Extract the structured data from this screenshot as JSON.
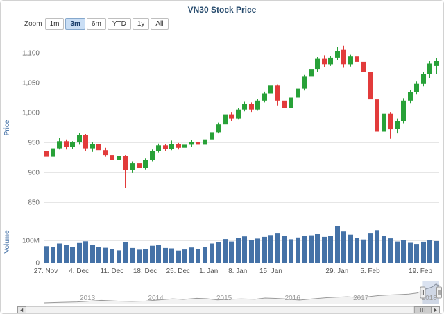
{
  "title": "VN30 Stock Price",
  "range_selector": {
    "zoom_label": "Zoom",
    "buttons": [
      {
        "label": "1m",
        "selected": false
      },
      {
        "label": "3m",
        "selected": true
      },
      {
        "label": "6m",
        "selected": false
      },
      {
        "label": "YTD",
        "selected": false
      },
      {
        "label": "1y",
        "selected": false
      },
      {
        "label": "All",
        "selected": false
      }
    ]
  },
  "colors": {
    "title_text": "#274b6d",
    "up": "#28a138",
    "down": "#e23b3b",
    "volume": "#4572a7",
    "grid": "#e6e6e6",
    "axis_line": "#ccd6eb",
    "tick_label": "#666666",
    "axis_title": "#4572a7",
    "nav_line": "#9a9a9a",
    "nav_fill": "rgba(170,170,170,0.15)",
    "nav_selection": "rgba(51,92,173,0.18)",
    "nav_outline": "#cfcfd4",
    "handle_fill": "#f1f1f1",
    "handle_stroke": "#999999",
    "scrollbar_track": "#f2f2f2",
    "scrollbar_track_border": "#cccccc",
    "scrollbar_thumb": "#cdcdcd",
    "scrollbar_thumb_border": "#999999",
    "scrollbar_button": "#e6e6e6",
    "scrollbar_arrow": "#555555",
    "button_selected_bg": "#c9def5",
    "button_selected_border": "#86a8cc",
    "button_selected_text": "#1a3e6b"
  },
  "chart_data": {
    "type": "candlestick",
    "title": "VN30 Stock Price",
    "legend": "off",
    "grid": "on",
    "price_axis": {
      "title": "Price",
      "ticks": [
        {
          "value": 850,
          "label": "850"
        },
        {
          "value": 900,
          "label": "900"
        },
        {
          "value": 950,
          "label": "950"
        },
        {
          "value": 1000,
          "label": "1,000"
        },
        {
          "value": 1050,
          "label": "1,050"
        },
        {
          "value": 1100,
          "label": "1,100"
        }
      ],
      "range": [
        840,
        1120
      ]
    },
    "volume_axis": {
      "title": "Volume",
      "ticks": [
        {
          "value": 0,
          "label": "0"
        },
        {
          "value": 100,
          "label": "100M"
        }
      ],
      "unit": "millions of shares"
    },
    "x_ticks": [
      {
        "label": "27. Nov",
        "index": 0
      },
      {
        "label": "4. Dec",
        "index": 5
      },
      {
        "label": "11. Dec",
        "index": 10
      },
      {
        "label": "18. Dec",
        "index": 15
      },
      {
        "label": "25. Dec",
        "index": 20
      },
      {
        "label": "1. Jan",
        "index": 24.6
      },
      {
        "label": "8. Jan",
        "index": 29
      },
      {
        "label": "15. Jan",
        "index": 34
      },
      {
        "label": "29. Jan",
        "index": 44
      },
      {
        "label": "5. Feb",
        "index": 49
      },
      {
        "label": "19. Feb",
        "index": 56.6
      }
    ],
    "columns": [
      "date",
      "open",
      "high",
      "low",
      "close",
      "volume_millions"
    ],
    "candles": [
      [
        "2017-11-27",
        936,
        939,
        922,
        926,
        74
      ],
      [
        "2017-11-28",
        926,
        943,
        924,
        940,
        69
      ],
      [
        "2017-11-29",
        940,
        958,
        938,
        952,
        86
      ],
      [
        "2017-11-30",
        952,
        955,
        938,
        942,
        80
      ],
      [
        "2017-12-01",
        942,
        952,
        939,
        950,
        72
      ],
      [
        "2017-12-04",
        950,
        966,
        946,
        962,
        88
      ],
      [
        "2017-12-05",
        962,
        964,
        936,
        940,
        96
      ],
      [
        "2017-12-06",
        940,
        950,
        934,
        947,
        78
      ],
      [
        "2017-12-07",
        947,
        949,
        933,
        937,
        70
      ],
      [
        "2017-12-08",
        937,
        941,
        926,
        929,
        67
      ],
      [
        "2017-12-11",
        929,
        933,
        918,
        921,
        60
      ],
      [
        "2017-12-12",
        921,
        930,
        917,
        927,
        55
      ],
      [
        "2017-12-13",
        927,
        929,
        874,
        904,
        91
      ],
      [
        "2017-12-14",
        904,
        918,
        899,
        915,
        66
      ],
      [
        "2017-12-15",
        915,
        917,
        903,
        907,
        58
      ],
      [
        "2017-12-18",
        907,
        923,
        905,
        920,
        62
      ],
      [
        "2017-12-19",
        920,
        938,
        918,
        935,
        76
      ],
      [
        "2017-12-20",
        935,
        948,
        933,
        945,
        81
      ],
      [
        "2017-12-21",
        945,
        947,
        936,
        939,
        66
      ],
      [
        "2017-12-22",
        939,
        953,
        937,
        947,
        64
      ],
      [
        "2017-12-25",
        947,
        949,
        938,
        941,
        54
      ],
      [
        "2017-12-26",
        941,
        949,
        939,
        946,
        59
      ],
      [
        "2017-12-27",
        946,
        954,
        943,
        951,
        68
      ],
      [
        "2017-12-28",
        951,
        953,
        943,
        946,
        62
      ],
      [
        "2017-12-29",
        946,
        958,
        944,
        955,
        71
      ],
      [
        "2018-01-02",
        955,
        970,
        953,
        967,
        86
      ],
      [
        "2018-01-03",
        967,
        983,
        965,
        980,
        93
      ],
      [
        "2018-01-04",
        980,
        1000,
        978,
        997,
        106
      ],
      [
        "2018-01-05",
        997,
        1001,
        986,
        990,
        95
      ],
      [
        "2018-01-08",
        990,
        1008,
        988,
        1005,
        111
      ],
      [
        "2018-01-09",
        1005,
        1018,
        1002,
        1015,
        118
      ],
      [
        "2018-01-10",
        1015,
        1017,
        1001,
        1005,
        101
      ],
      [
        "2018-01-11",
        1005,
        1023,
        1003,
        1020,
        108
      ],
      [
        "2018-01-12",
        1020,
        1035,
        1017,
        1032,
        116
      ],
      [
        "2018-01-15",
        1032,
        1048,
        1029,
        1045,
        124
      ],
      [
        "2018-01-16",
        1045,
        1047,
        1012,
        1020,
        131
      ],
      [
        "2018-01-17",
        1020,
        1024,
        994,
        1008,
        120
      ],
      [
        "2018-01-18",
        1008,
        1028,
        1005,
        1025,
        105
      ],
      [
        "2018-01-19",
        1025,
        1043,
        1022,
        1040,
        113
      ],
      [
        "2018-01-22",
        1040,
        1063,
        1037,
        1060,
        119
      ],
      [
        "2018-01-23",
        1060,
        1075,
        1055,
        1072,
        123
      ],
      [
        "2018-01-24",
        1072,
        1093,
        1068,
        1090,
        128
      ],
      [
        "2018-01-25",
        1090,
        1096,
        1076,
        1081,
        116
      ],
      [
        "2018-01-26",
        1081,
        1095,
        1078,
        1092,
        121
      ],
      [
        "2018-01-29",
        1092,
        1110,
        1088,
        1103,
        164
      ],
      [
        "2018-01-30",
        1105,
        1112,
        1075,
        1081,
        140
      ],
      [
        "2018-01-31",
        1081,
        1097,
        1077,
        1094,
        126
      ],
      [
        "2018-02-01",
        1094,
        1096,
        1079,
        1085,
        110
      ],
      [
        "2018-02-02",
        1085,
        1087,
        1063,
        1068,
        104
      ],
      [
        "2018-02-05",
        1068,
        1070,
        1014,
        1022,
        131
      ],
      [
        "2018-02-06",
        1022,
        1028,
        952,
        968,
        146
      ],
      [
        "2018-02-07",
        968,
        1003,
        961,
        998,
        121
      ],
      [
        "2018-02-08",
        998,
        1001,
        956,
        972,
        109
      ],
      [
        "2018-02-09",
        972,
        990,
        965,
        986,
        95
      ],
      [
        "2018-02-12",
        986,
        1024,
        982,
        1020,
        100
      ],
      [
        "2018-02-13",
        1020,
        1038,
        1016,
        1034,
        89
      ],
      [
        "2018-02-14",
        1034,
        1052,
        1030,
        1048,
        84
      ],
      [
        "2018-02-21",
        1048,
        1068,
        1044,
        1064,
        94
      ],
      [
        "2018-02-22",
        1064,
        1086,
        1058,
        1082,
        101
      ],
      [
        "2018-02-23",
        1078,
        1091,
        1064,
        1086,
        97
      ]
    ],
    "navigator": {
      "year_ticks": [
        2013,
        2014,
        2015,
        2016,
        2017,
        2018
      ],
      "selection": [
        2017.905,
        2018.145
      ],
      "series": [
        [
          2012.36,
          445
        ],
        [
          2012.6,
          462
        ],
        [
          2012.85,
          478
        ],
        [
          2013.0,
          502
        ],
        [
          2013.2,
          532
        ],
        [
          2013.45,
          505
        ],
        [
          2013.65,
          495
        ],
        [
          2013.85,
          508
        ],
        [
          2014.05,
          548
        ],
        [
          2014.25,
          588
        ],
        [
          2014.4,
          566
        ],
        [
          2014.6,
          606
        ],
        [
          2014.75,
          592
        ],
        [
          2014.9,
          548
        ],
        [
          2015.05,
          568
        ],
        [
          2015.25,
          586
        ],
        [
          2015.45,
          572
        ],
        [
          2015.6,
          616
        ],
        [
          2015.75,
          602
        ],
        [
          2015.9,
          586
        ],
        [
          2016.0,
          562
        ],
        [
          2016.1,
          542
        ],
        [
          2016.3,
          588
        ],
        [
          2016.5,
          628
        ],
        [
          2016.65,
          648
        ],
        [
          2016.8,
          662
        ],
        [
          2016.95,
          638
        ],
        [
          2017.1,
          662
        ],
        [
          2017.25,
          700
        ],
        [
          2017.4,
          722
        ],
        [
          2017.55,
          738
        ],
        [
          2017.7,
          756
        ],
        [
          2017.82,
          792
        ],
        [
          2017.9,
          865
        ],
        [
          2017.95,
          935
        ],
        [
          2018.0,
          968
        ],
        [
          2018.05,
          1015
        ],
        [
          2018.09,
          1098
        ],
        [
          2018.11,
          1102
        ],
        [
          2018.13,
          1005
        ],
        [
          2018.145,
          1082
        ]
      ]
    },
    "scrollbar": {
      "left_arrow_icon": "◄",
      "right_arrow_icon": "►"
    }
  }
}
